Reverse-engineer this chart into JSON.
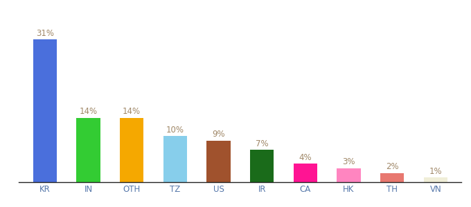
{
  "categories": [
    "KR",
    "IN",
    "OTH",
    "TZ",
    "US",
    "IR",
    "CA",
    "HK",
    "TH",
    "VN"
  ],
  "values": [
    31,
    14,
    14,
    10,
    9,
    7,
    4,
    3,
    2,
    1
  ],
  "bar_colors": [
    "#4a6fdc",
    "#33cc33",
    "#f5a800",
    "#87ceeb",
    "#a0522d",
    "#1a6b1a",
    "#ff1493",
    "#ff85c0",
    "#e87870",
    "#f0eed8"
  ],
  "labels": [
    "31%",
    "14%",
    "14%",
    "10%",
    "9%",
    "7%",
    "4%",
    "3%",
    "2%",
    "1%"
  ],
  "label_color": "#a08868",
  "background_color": "#ffffff",
  "ylim": [
    0,
    36
  ],
  "bar_width": 0.55,
  "label_fontsize": 8.5,
  "xtick_fontsize": 8.5,
  "xtick_color": "#5577aa"
}
